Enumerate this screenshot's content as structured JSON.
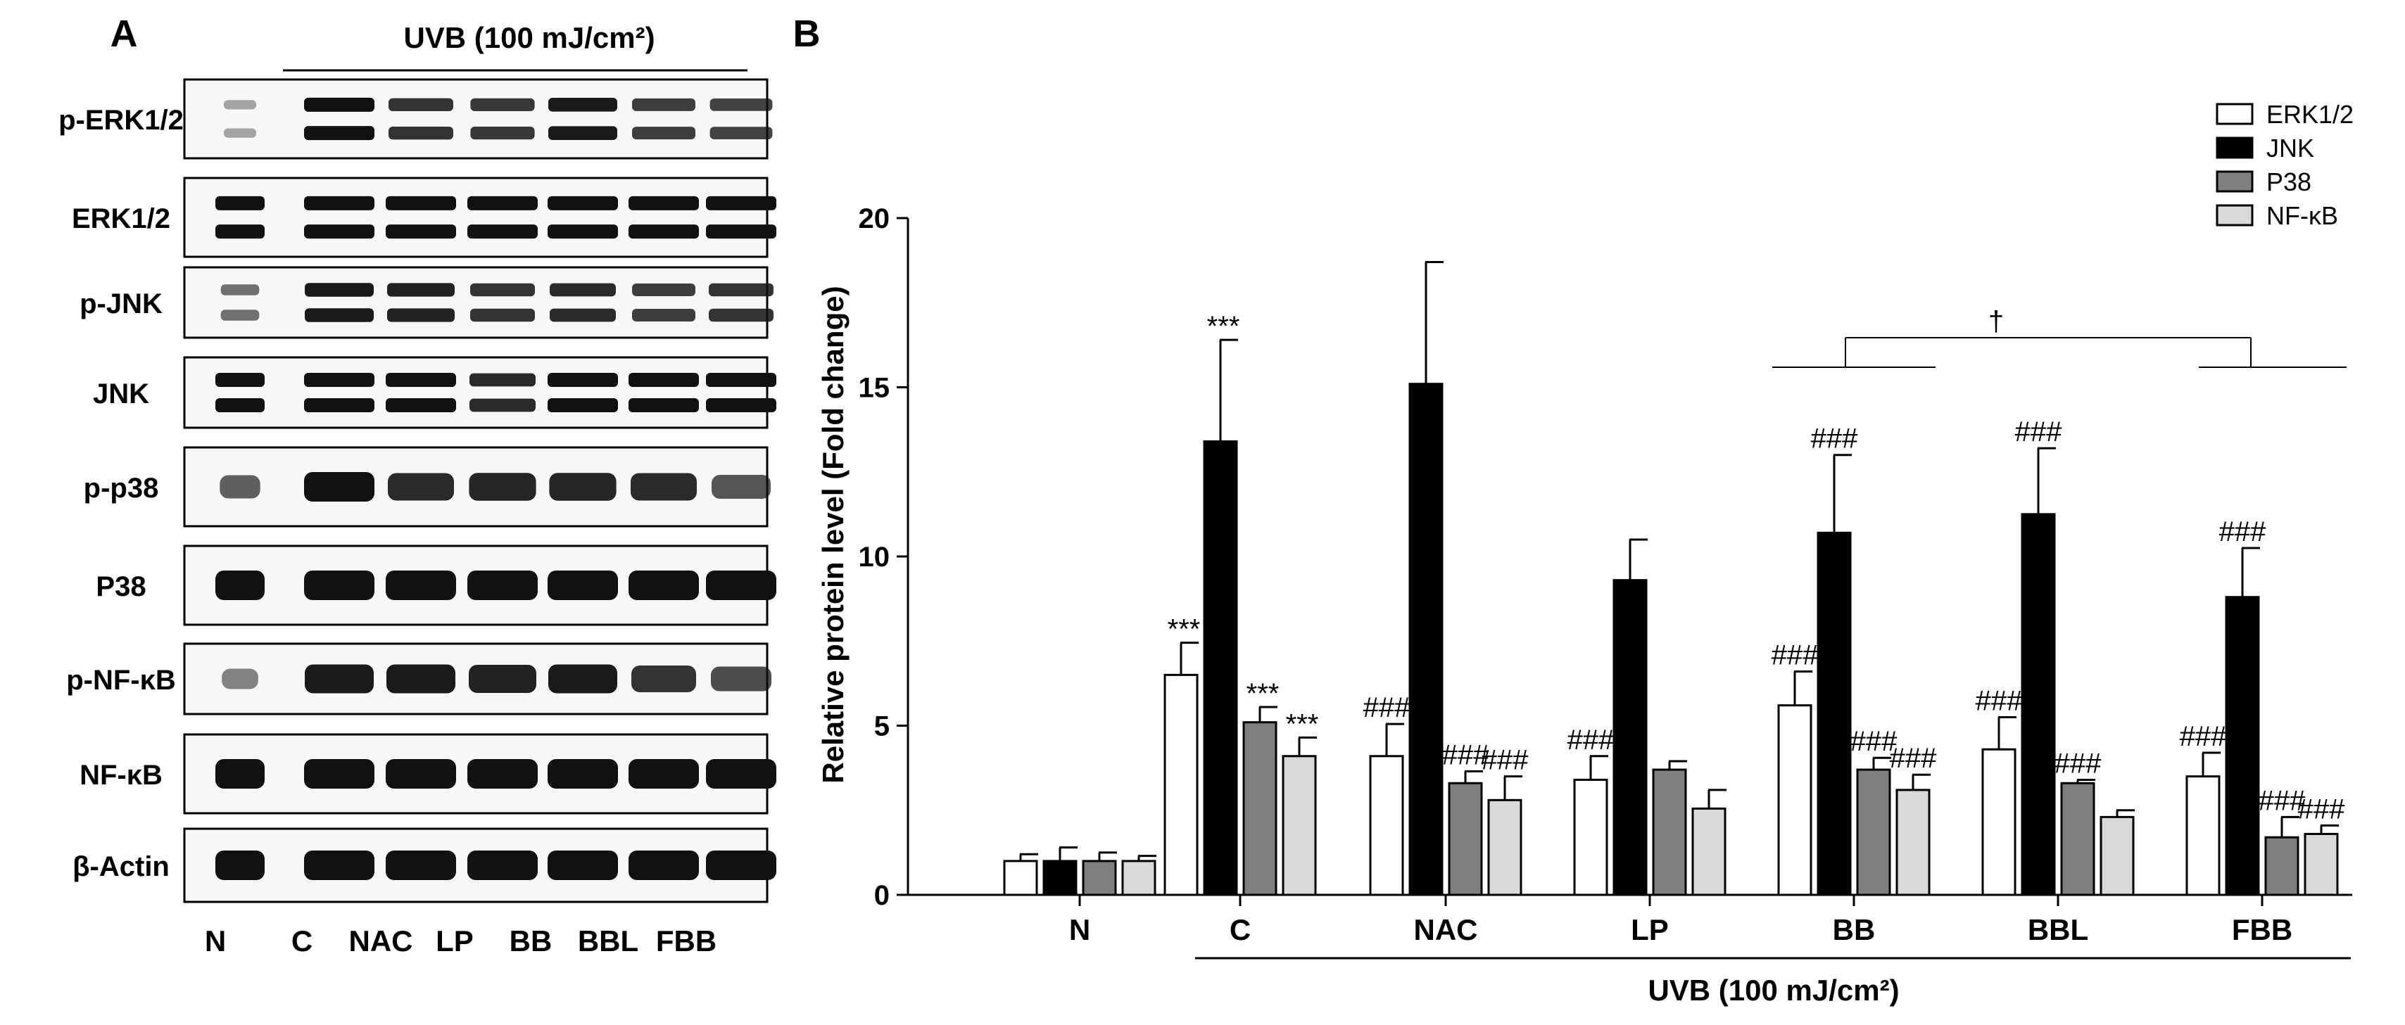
{
  "panel_a": {
    "label": "A",
    "treatment_label": "UVB (100 mJ/cm²)",
    "blots": [
      "p-ERK1/2",
      "ERK1/2",
      "p-JNK",
      "JNK",
      "p-p38",
      "P38",
      "p-NF-κB",
      "NF-κB",
      "β-Actin"
    ],
    "lanes": [
      "N",
      "C",
      "NAC",
      "LP",
      "BB",
      "BBL",
      "FBB"
    ],
    "lane_intensity": {
      "p-ERK1/2": [
        0.15,
        1.0,
        0.8,
        0.78,
        0.95,
        0.75,
        0.72
      ],
      "ERK1/2": [
        1,
        1,
        1,
        1,
        1,
        1,
        1
      ],
      "p-JNK": [
        0.45,
        0.95,
        0.9,
        0.8,
        0.85,
        0.75,
        0.8
      ],
      "JNK": [
        1,
        1,
        1,
        0.85,
        1,
        1,
        1
      ],
      "p-p38": [
        0.55,
        1.0,
        0.85,
        0.88,
        0.88,
        0.85,
        0.6
      ],
      "P38": [
        1,
        1,
        1,
        1,
        1,
        1,
        1
      ],
      "p-NF-κB": [
        0.35,
        0.95,
        0.95,
        0.9,
        0.95,
        0.8,
        0.65
      ],
      "NF-κB": [
        1,
        1,
        1,
        1,
        1,
        1,
        1
      ],
      "β-Actin": [
        1,
        1,
        1,
        1,
        1,
        1,
        1
      ]
    }
  },
  "chart_data": {
    "type": "bar",
    "panel_label": "B",
    "categories": [
      "N",
      "C",
      "NAC",
      "LP",
      "BB",
      "BBL",
      "FBB"
    ],
    "ylabel": "Relative protein level (Fold change)",
    "xlabel": "UVB (100 mJ/cm²)",
    "xlabel_spans": [
      "C",
      "FBB"
    ],
    "ylim": [
      0,
      20
    ],
    "yticks": [
      0,
      5,
      10,
      15,
      20
    ],
    "legend_position": "top-right",
    "series": [
      {
        "name": "ERK1/2",
        "color": "#ffffff",
        "values": [
          1.0,
          6.5,
          4.1,
          3.4,
          5.6,
          4.3,
          3.5
        ],
        "errors": [
          0.2,
          0.95,
          0.95,
          0.7,
          1.0,
          0.95,
          0.7
        ],
        "annotations": [
          "",
          "***",
          "###",
          "###",
          "###",
          "###",
          "###"
        ]
      },
      {
        "name": "JNK",
        "color": "#000000",
        "values": [
          1.0,
          13.4,
          15.1,
          9.3,
          10.7,
          11.25,
          8.8
        ],
        "errors": [
          0.4,
          3.0,
          3.6,
          1.2,
          2.3,
          1.95,
          1.45
        ],
        "annotations": [
          "",
          "***",
          "",
          "",
          "###",
          "###",
          "###"
        ]
      },
      {
        "name": "P38",
        "color": "#7f7f7f",
        "values": [
          1.0,
          5.1,
          3.3,
          3.7,
          3.7,
          3.3,
          1.7
        ],
        "errors": [
          0.25,
          0.45,
          0.35,
          0.25,
          0.35,
          0.1,
          0.6
        ],
        "annotations": [
          "",
          "***",
          "###",
          "",
          "###",
          "###",
          "###"
        ]
      },
      {
        "name": "NF-κB",
        "color": "#d9d9d9",
        "values": [
          1.0,
          4.1,
          2.8,
          2.55,
          3.1,
          2.3,
          1.8
        ],
        "errors": [
          0.15,
          0.55,
          0.7,
          0.55,
          0.45,
          0.2,
          0.25
        ],
        "annotations": [
          "",
          "***",
          "###",
          "",
          "###",
          "",
          "###"
        ]
      }
    ],
    "comparison": {
      "symbol": "†",
      "left_group": "BB",
      "right_group": "FBB"
    }
  }
}
